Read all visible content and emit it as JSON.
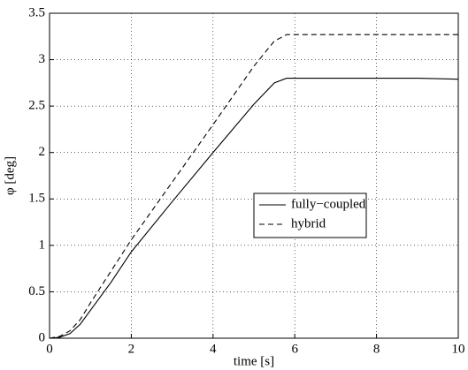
{
  "chart_data": {
    "type": "line",
    "xlabel": "time [s]",
    "ylabel": "φ [deg]",
    "x": [
      0,
      0.25,
      0.5,
      0.75,
      1,
      1.5,
      2,
      3,
      4,
      5,
      5.5,
      5.8,
      6,
      7,
      8,
      9,
      10
    ],
    "series": [
      {
        "name": "fully−coupled",
        "color": "#000000",
        "dash": "solid",
        "values": [
          0,
          0.01,
          0.05,
          0.15,
          0.3,
          0.6,
          0.93,
          1.47,
          2.0,
          2.52,
          2.75,
          2.8,
          2.8,
          2.8,
          2.8,
          2.8,
          2.79
        ]
      },
      {
        "name": "hybrid",
        "color": "#000000",
        "dash": "dashed",
        "values": [
          0,
          0.02,
          0.08,
          0.2,
          0.38,
          0.72,
          1.06,
          1.68,
          2.3,
          2.93,
          3.2,
          3.27,
          3.27,
          3.27,
          3.27,
          3.27,
          3.27
        ]
      }
    ],
    "xlim": [
      0,
      10
    ],
    "xticks": [
      0,
      2,
      4,
      6,
      8,
      10
    ],
    "ylim": [
      0,
      3.5
    ],
    "yticks": [
      0,
      0.5,
      1,
      1.5,
      2,
      2.5,
      3,
      3.5
    ],
    "grid": true,
    "legend": "center right"
  }
}
